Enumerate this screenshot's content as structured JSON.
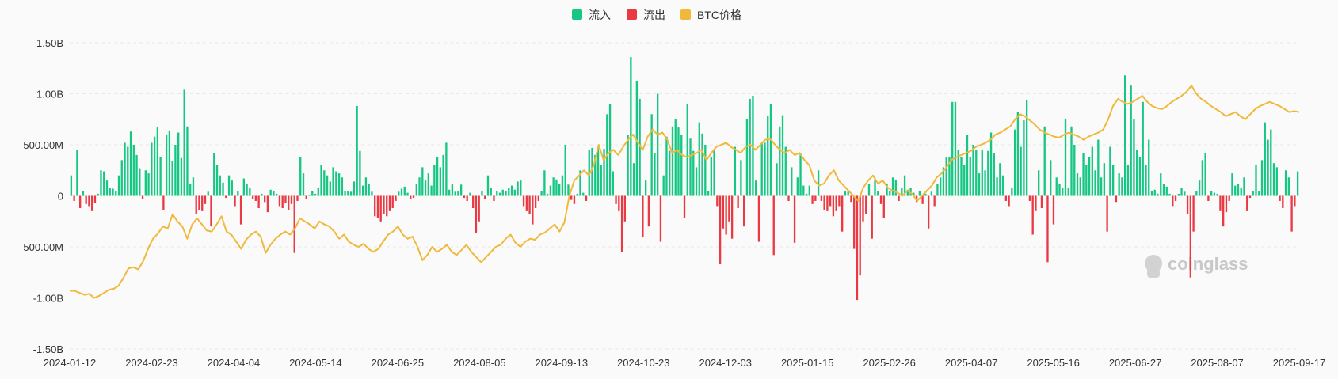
{
  "chart_data": {
    "type": "bar+line",
    "legend": [
      {
        "name": "流入",
        "color": "#16c784"
      },
      {
        "name": "流出",
        "color": "#ea3943"
      },
      {
        "name": "BTC价格",
        "color": "#f0b93b"
      }
    ],
    "legend_position": "top-center",
    "grid": "horizontal dashed",
    "y_ticks": [
      "1.50B",
      "1.00B",
      "500.00M",
      "0",
      "-500.00M",
      "-1.00B",
      "-1.50B"
    ],
    "ylim": [
      -1.5,
      1.5
    ],
    "y_unit": "B",
    "x_ticks": [
      "2024-01-12",
      "2024-02-23",
      "2024-04-04",
      "2024-05-14",
      "2024-06-25",
      "2024-08-05",
      "2024-09-13",
      "2024-10-23",
      "2024-12-03",
      "2025-01-15",
      "2025-02-26",
      "2025-04-07",
      "2025-05-16",
      "2025-06-27",
      "2025-08-07",
      "2025-09-17"
    ],
    "flows_B": [
      0.2,
      -0.05,
      0.45,
      -0.12,
      0.05,
      -0.08,
      -0.1,
      -0.15,
      -0.07,
      0.02,
      0.25,
      0.24,
      0.15,
      0.08,
      0.07,
      0.05,
      0.2,
      0.35,
      0.52,
      0.48,
      0.63,
      0.5,
      0.4,
      0.27,
      -0.03,
      0.25,
      0.22,
      0.52,
      0.58,
      0.67,
      0.38,
      -0.14,
      0.6,
      0.64,
      0.34,
      0.5,
      0.62,
      0.37,
      1.04,
      0.68,
      0.12,
      0.18,
      -0.18,
      -0.14,
      -0.15,
      -0.08,
      0.04,
      -0.3,
      0.42,
      0.3,
      0.2,
      0.13,
      -0.02,
      0.2,
      0.15,
      -0.1,
      0.05,
      -0.28,
      0.17,
      0.12,
      0.08,
      -0.03,
      -0.05,
      -0.12,
      0.02,
      -0.06,
      -0.16,
      0.06,
      0.05,
      0.02,
      -0.1,
      -0.12,
      -0.07,
      -0.14,
      -0.08,
      -0.56,
      -0.05,
      0.38,
      0.22,
      -0.03,
      0.01,
      0.05,
      0.02,
      0.08,
      0.3,
      0.25,
      0.2,
      0.14,
      0.28,
      0.24,
      0.22,
      0.18,
      0.05,
      0.05,
      0.04,
      0.14,
      0.88,
      0.44,
      0.1,
      0.18,
      0.12,
      0.04,
      -0.2,
      -0.22,
      -0.25,
      -0.18,
      -0.2,
      -0.15,
      -0.12,
      -0.05,
      0.04,
      0.07,
      0.09,
      0.03,
      -0.03,
      -0.02,
      0.12,
      0.18,
      0.28,
      0.15,
      0.22,
      0.1,
      0.3,
      0.38,
      0.28,
      0.4,
      0.52,
      0.06,
      0.12,
      0.04,
      0.05,
      0.11,
      -0.02,
      -0.05,
      0.03,
      -0.12,
      -0.36,
      -0.25,
      0.05,
      -0.03,
      0.2,
      0.08,
      -0.05,
      0.05,
      0.03,
      0.06,
      0.05,
      0.08,
      0.1,
      0.06,
      0.14,
      0.15,
      -0.1,
      -0.15,
      -0.18,
      -0.28,
      -0.12,
      -0.05,
      0.05,
      0.25,
      0.02,
      0.1,
      0.18,
      0.16,
      0.12,
      0.2,
      0.5,
      0.11,
      -0.04,
      -0.08,
      0.02,
      0.25,
      0.03,
      -0.05,
      0.45,
      0.47,
      0.4,
      0.48,
      0.3,
      0.46,
      0.8,
      0.9,
      0.24,
      -0.08,
      -0.15,
      -0.55,
      -0.25,
      0.6,
      1.36,
      0.32,
      1.12,
      0.95,
      -0.4,
      0.15,
      -0.3,
      0.8,
      0.42,
      1.0,
      -0.45,
      0.2,
      0.58,
      0.44,
      0.68,
      0.75,
      0.67,
      0.6,
      -0.22,
      0.9,
      0.56,
      0.44,
      0.28,
      0.72,
      0.61,
      0.5,
      0.05,
      0.38,
      0.45,
      -0.1,
      -0.67,
      -0.32,
      -0.38,
      -0.25,
      -0.42,
      0.48,
      -0.12,
      0.35,
      -0.3,
      0.75,
      0.95,
      0.98,
      0.15,
      -0.45,
      0.52,
      0.52,
      0.78,
      0.9,
      -0.58,
      0.32,
      0.68,
      0.79,
      0.48,
      -0.05,
      0.28,
      -0.46,
      0.18,
      0.42,
      0.1,
      0.02,
      0.1,
      -0.08,
      -0.05,
      0.25,
      -0.05,
      -0.14,
      -0.15,
      -0.1,
      -0.2,
      -0.15,
      -0.1,
      -0.35,
      0.05,
      0.04,
      -0.06,
      -0.52,
      -1.02,
      -0.78,
      -0.25,
      -0.18,
      0.12,
      -0.42,
      0.15,
      0.05,
      -0.08,
      -0.22,
      0.12,
      0.05,
      0.18,
      0.16,
      -0.05,
      0.08,
      0.2,
      0.06,
      0.08,
      0.03,
      -0.06,
      0.05,
      -0.08,
      0.02,
      -0.32,
      0.04,
      -0.1,
      0.12,
      0.18,
      0.28,
      0.38,
      0.38,
      0.92,
      0.92,
      0.45,
      0.38,
      0.3,
      0.6,
      0.38,
      0.5,
      0.45,
      0.22,
      0.45,
      0.25,
      0.44,
      0.62,
      0.42,
      0.18,
      0.32,
      0.2,
      -0.05,
      -0.1,
      0.08,
      0.65,
      0.82,
      0.48,
      0.74,
      0.94,
      -0.05,
      -0.38,
      -0.15,
      0.25,
      -0.12,
      0.68,
      -0.65,
      0.35,
      -0.28,
      0.18,
      0.12,
      0.08,
      0.75,
      0.08,
      0.68,
      0.5,
      0.22,
      0.18,
      0.42,
      0.3,
      0.38,
      0.48,
      0.25,
      0.55,
      0.18,
      0.32,
      -0.35,
      0.48,
      0.3,
      -0.06,
      0.22,
      0.18,
      1.18,
      0.3,
      1.08,
      0.75,
      0.45,
      0.38,
      0.92,
      0.3,
      0.55,
      0.05,
      0.06,
      0.02,
      0.22,
      0.12,
      0.09,
      0.02,
      -0.1,
      -0.05,
      0.02,
      0.08,
      0.04,
      -0.18,
      -0.8,
      -0.35,
      0.05,
      0.15,
      0.35,
      0.42,
      -0.05,
      0.05,
      0.03,
      0.02,
      -0.15,
      -0.3,
      -0.16,
      -0.05,
      0.22,
      0.1,
      0.12,
      0.08,
      0.18,
      -0.15,
      -0.02,
      0.05,
      0.3,
      0.05,
      0.35,
      0.72,
      0.55,
      0.65,
      0.32,
      0.28,
      -0.05,
      -0.12,
      0.25,
      0.18,
      -0.35,
      -0.1,
      0.24
    ],
    "btc_price_rel": [
      -0.93,
      -0.93,
      -0.95,
      -0.97,
      -0.96,
      -1.0,
      -0.98,
      -0.95,
      -0.92,
      -0.91,
      -0.88,
      -0.8,
      -0.71,
      -0.7,
      -0.72,
      -0.64,
      -0.52,
      -0.42,
      -0.37,
      -0.3,
      -0.32,
      -0.18,
      -0.25,
      -0.3,
      -0.42,
      -0.28,
      -0.22,
      -0.28,
      -0.34,
      -0.35,
      -0.28,
      -0.2,
      -0.35,
      -0.38,
      -0.45,
      -0.52,
      -0.43,
      -0.38,
      -0.35,
      -0.4,
      -0.56,
      -0.48,
      -0.42,
      -0.38,
      -0.35,
      -0.38,
      -0.32,
      -0.22,
      -0.25,
      -0.28,
      -0.32,
      -0.25,
      -0.28,
      -0.3,
      -0.35,
      -0.42,
      -0.38,
      -0.45,
      -0.48,
      -0.5,
      -0.47,
      -0.52,
      -0.55,
      -0.52,
      -0.45,
      -0.38,
      -0.35,
      -0.3,
      -0.38,
      -0.42,
      -0.4,
      -0.5,
      -0.63,
      -0.58,
      -0.5,
      -0.55,
      -0.52,
      -0.48,
      -0.55,
      -0.58,
      -0.53,
      -0.48,
      -0.55,
      -0.6,
      -0.65,
      -0.6,
      -0.55,
      -0.5,
      -0.48,
      -0.42,
      -0.38,
      -0.46,
      -0.5,
      -0.45,
      -0.42,
      -0.43,
      -0.38,
      -0.36,
      -0.32,
      -0.28,
      -0.35,
      -0.26,
      0.0,
      0.15,
      0.2,
      0.25,
      0.2,
      0.3,
      0.5,
      0.35,
      0.42,
      0.45,
      0.4,
      0.48,
      0.55,
      0.6,
      0.52,
      0.45,
      0.58,
      0.65,
      0.6,
      0.62,
      0.55,
      0.42,
      0.45,
      0.4,
      0.38,
      0.4,
      0.42,
      0.45,
      0.35,
      0.42,
      0.48,
      0.5,
      0.52,
      0.48,
      0.45,
      0.42,
      0.48,
      0.5,
      0.45,
      0.5,
      0.55,
      0.56,
      0.5,
      0.45,
      0.42,
      0.45,
      0.4,
      0.42,
      0.35,
      0.3,
      0.15,
      0.1,
      0.12,
      0.2,
      0.25,
      0.15,
      0.1,
      0.05,
      0.0,
      -0.05,
      0.08,
      0.15,
      0.2,
      0.12,
      0.15,
      0.08,
      0.05,
      0.03,
      0.0,
      0.05,
      0.02,
      -0.05,
      0.0,
      0.05,
      0.1,
      0.18,
      0.22,
      0.28,
      0.35,
      0.38,
      0.4,
      0.42,
      0.44,
      0.48,
      0.5,
      0.52,
      0.55,
      0.6,
      0.62,
      0.65,
      0.68,
      0.75,
      0.8,
      0.78,
      0.74,
      0.7,
      0.65,
      0.62,
      0.6,
      0.58,
      0.57,
      0.6,
      0.62,
      0.6,
      0.58,
      0.55,
      0.58,
      0.6,
      0.62,
      0.65,
      0.75,
      0.88,
      0.95,
      0.92,
      0.9,
      0.92,
      0.95,
      0.98,
      0.92,
      0.88,
      0.86,
      0.85,
      0.88,
      0.92,
      0.95,
      0.98,
      1.02,
      1.08,
      1.0,
      0.95,
      0.92,
      0.88,
      0.85,
      0.82,
      0.78,
      0.8,
      0.82,
      0.78,
      0.75,
      0.8,
      0.85,
      0.88,
      0.9,
      0.92,
      0.9,
      0.88,
      0.85,
      0.82,
      0.83,
      0.82
    ]
  },
  "watermark": "coinglass"
}
